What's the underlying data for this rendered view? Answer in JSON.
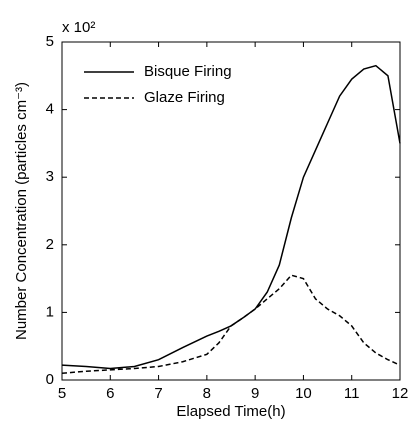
{
  "chart_data": {
    "type": "line",
    "multiplier": "x 10²",
    "x_label": "Elapsed Time(h)",
    "y_label": "Number Concentration (particles cm⁻³)",
    "x": [
      5,
      5.5,
      6,
      6.5,
      7,
      7.5,
      8,
      8.25,
      8.5,
      8.75,
      9,
      9.25,
      9.5,
      9.75,
      10,
      10.25,
      10.5,
      10.75,
      11,
      11.25,
      11.5,
      11.75,
      12
    ],
    "series": [
      {
        "name": "Bisque Firing",
        "color": "#000000",
        "dash": "solid",
        "values": [
          0.22,
          0.2,
          0.17,
          0.2,
          0.3,
          0.48,
          0.65,
          0.72,
          0.8,
          0.92,
          1.05,
          1.3,
          1.7,
          2.4,
          3.0,
          3.4,
          3.8,
          4.2,
          4.45,
          4.6,
          4.65,
          4.5,
          3.5
        ]
      },
      {
        "name": "Glaze Firing",
        "color": "#000000",
        "dash": "dashed",
        "values": [
          0.1,
          0.13,
          0.15,
          0.17,
          0.2,
          0.27,
          0.38,
          0.55,
          0.8,
          0.92,
          1.05,
          1.2,
          1.35,
          1.55,
          1.5,
          1.2,
          1.05,
          0.95,
          0.8,
          0.55,
          0.4,
          0.3,
          0.22
        ]
      }
    ],
    "xlim": [
      5,
      12
    ],
    "xticks": [
      5,
      6,
      7,
      8,
      9,
      10,
      11,
      12
    ],
    "ylim": [
      0,
      5
    ],
    "yticks": [
      0,
      1,
      2,
      3,
      4,
      5
    ],
    "legend": "upper-left"
  }
}
